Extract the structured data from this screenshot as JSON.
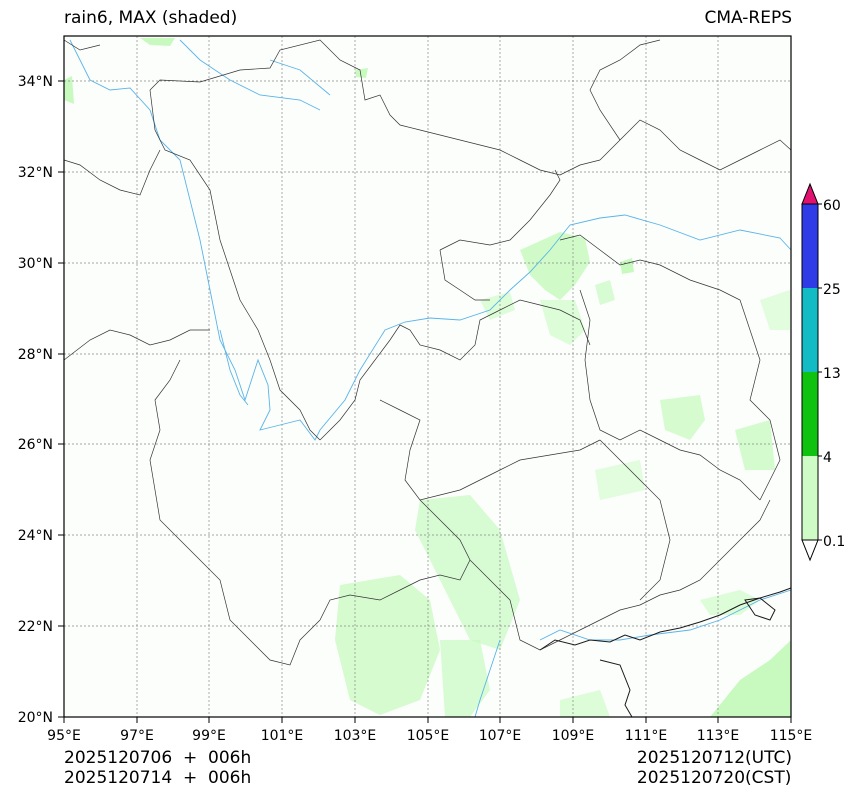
{
  "title_left": "rain6, MAX (shaded)",
  "title_right": "CMA-REPS",
  "lat_labels": [
    "34°N",
    "32°N",
    "30°N",
    "28°N",
    "26°N",
    "24°N",
    "22°N",
    "20°N"
  ],
  "lon_labels": [
    "95°E",
    "97°E",
    "99°E",
    "101°E",
    "103°E",
    "105°E",
    "107°E",
    "109°E",
    "111°E",
    "113°E",
    "115°E"
  ],
  "colorbar": {
    "labels": [
      "60",
      "25",
      "13",
      "4",
      "0.1"
    ],
    "colors": {
      "over": "#e0116f",
      "c25_60": "#2e3be6",
      "c13_25": "#13bcc4",
      "c4_13": "#10c210",
      "c01_4": "#cffbc6",
      "under": "#ffffff"
    }
  },
  "footer": {
    "init_utc": "2025120706  +  006h",
    "init_cst": "2025120714  +  006h",
    "valid_utc": "2025120712(UTC)",
    "valid_cst": "2025120720(CST)"
  },
  "colors": {
    "rain_light": "#c8fac0",
    "river": "#5ab4e8",
    "border": "#333333"
  }
}
